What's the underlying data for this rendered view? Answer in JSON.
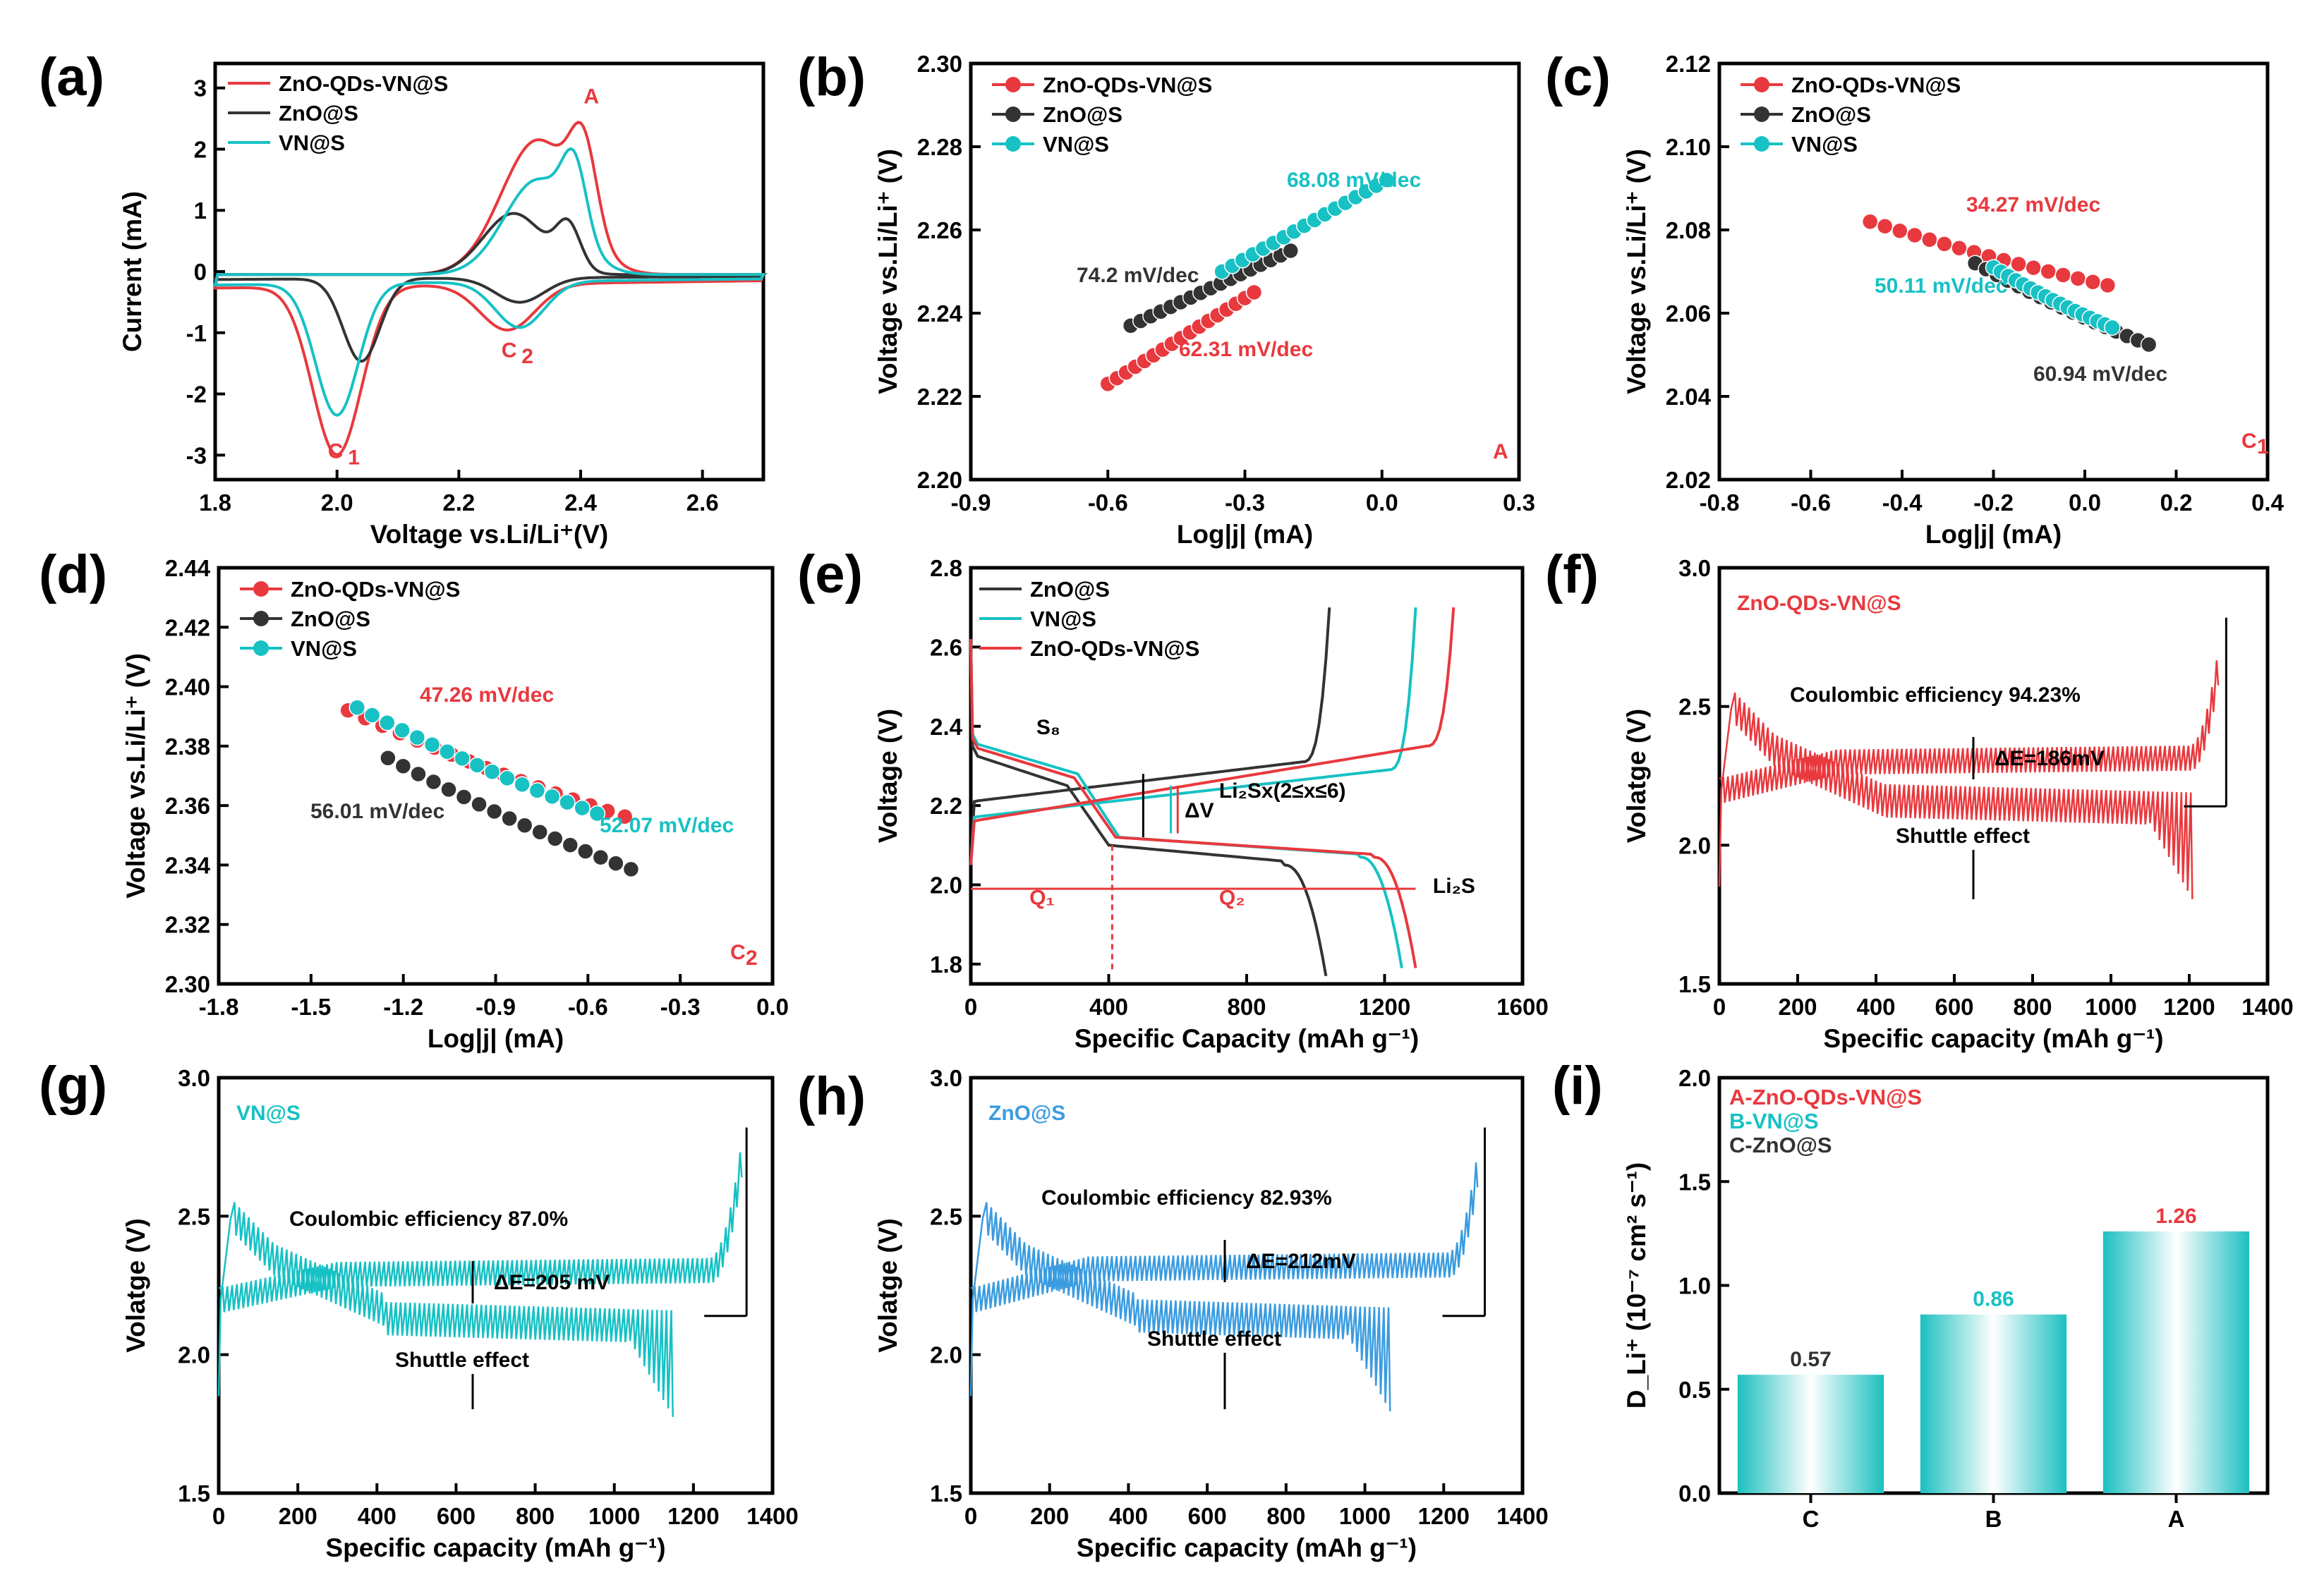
{
  "colors": {
    "red": "#e8393e",
    "black": "#333333",
    "cyan": "#17c1c4",
    "blue": "#3b9ce0",
    "teal": "#1cc0c0"
  },
  "series_names": {
    "red": "ZnO-QDs-VN@S",
    "black": "ZnO@S",
    "cyan": "VN@S"
  },
  "chart_data": [
    {
      "id": "a",
      "panel_label": "(a)",
      "type": "line",
      "xlabel": "Voltage vs.Li/Li⁺(V)",
      "ylabel": "Current (mA)",
      "xlim": [
        1.8,
        2.7
      ],
      "ylim": [
        -3.4,
        3.4
      ],
      "xticks": [
        1.8,
        2.0,
        2.2,
        2.4,
        2.6
      ],
      "xticklabels": [
        "1.8",
        "2.0",
        "2.2",
        "2.4",
        "2.6"
      ],
      "yticks": [
        -3,
        -2,
        -1,
        0,
        1,
        2,
        3
      ],
      "yticklabels": [
        "-3",
        "-2",
        "-1",
        "0",
        "1",
        "2",
        "3"
      ],
      "legend": [
        "ZnO-QDs-VN@S",
        "ZnO@S",
        "VN@S"
      ],
      "annotations": [
        "A",
        "C",
        "1",
        "C",
        "2"
      ],
      "series": [
        {
          "name": "ZnO-QDs-VN@S",
          "peaks": {
            "A": [
              2.4,
              2.7
            ],
            "C1": [
              2.0,
              -2.9
            ],
            "C2": [
              2.28,
              -0.9
            ]
          }
        },
        {
          "name": "ZnO@S",
          "peaks": {
            "A": [
              2.38,
              1.0
            ],
            "C1": [
              2.04,
              -1.4
            ],
            "C2": [
              2.3,
              -0.45
            ]
          }
        },
        {
          "name": "VN@S",
          "peaks": {
            "A": [
              2.39,
              2.0
            ],
            "C1": [
              2.0,
              -2.3
            ],
            "C2": [
              2.3,
              -0.85
            ]
          }
        }
      ]
    },
    {
      "id": "b",
      "panel_label": "(b)",
      "type": "scatter",
      "xlabel": "Log|j| (mA)",
      "ylabel": "Voltage vs.Li/Li⁺ (V)",
      "xlim": [
        -0.9,
        0.3
      ],
      "ylim": [
        2.2,
        2.3
      ],
      "xticks": [
        -0.9,
        -0.6,
        -0.3,
        0.0,
        0.3
      ],
      "xticklabels": [
        "-0.9",
        "-0.6",
        "-0.3",
        "0.0",
        "0.3"
      ],
      "yticks": [
        2.2,
        2.22,
        2.24,
        2.26,
        2.28,
        2.3
      ],
      "yticklabels": [
        "2.20",
        "2.22",
        "2.24",
        "2.26",
        "2.28",
        "2.30"
      ],
      "legend": [
        "ZnO-QDs-VN@S",
        "ZnO@S",
        "VN@S"
      ],
      "corner_label": "A",
      "series": [
        {
          "name": "ZnO-QDs-VN@S",
          "x": [
            -0.6,
            -0.28
          ],
          "y": [
            2.223,
            2.245
          ],
          "label": "62.31 mV/dec"
        },
        {
          "name": "ZnO@S",
          "x": [
            -0.55,
            -0.2
          ],
          "y": [
            2.237,
            2.255
          ],
          "label": "74.2 mV/dec"
        },
        {
          "name": "VN@S",
          "x": [
            -0.35,
            0.01
          ],
          "y": [
            2.25,
            2.272
          ],
          "label": "68.08 mV/dec"
        }
      ]
    },
    {
      "id": "c",
      "panel_label": "(c)",
      "type": "scatter",
      "xlabel": "Log|j| (mA)",
      "ylabel": "Voltage vs.Li/Li⁺ (V)",
      "xlim": [
        -0.8,
        0.4
      ],
      "ylim": [
        2.02,
        2.12
      ],
      "xticks": [
        -0.8,
        -0.6,
        -0.4,
        -0.2,
        0.0,
        0.2,
        0.4
      ],
      "xticklabels": [
        "-0.8",
        "-0.6",
        "-0.4",
        "-0.2",
        "0.0",
        "0.2",
        "0.4"
      ],
      "yticks": [
        2.02,
        2.04,
        2.06,
        2.08,
        2.1,
        2.12
      ],
      "yticklabels": [
        "2.02",
        "2.04",
        "2.06",
        "2.08",
        "2.10",
        "2.12"
      ],
      "legend": [
        "ZnO-QDs-VN@S",
        "ZnO@S",
        "VN@S"
      ],
      "corner_label": "C",
      "corner_sub": "1",
      "series": [
        {
          "name": "ZnO-QDs-VN@S",
          "x": [
            -0.47,
            0.05
          ],
          "y": [
            2.082,
            2.064
          ],
          "label": "34.27 mV/dec"
        },
        {
          "name": "ZnO@S",
          "x": [
            -0.24,
            0.14
          ],
          "y": [
            2.072,
            2.049
          ],
          "label": "60.94 mV/dec"
        },
        {
          "name": "VN@S",
          "x": [
            -0.2,
            0.06
          ],
          "y": [
            2.071,
            2.054
          ],
          "label": "50.11 mV/dec"
        }
      ]
    },
    {
      "id": "d",
      "panel_label": "(d)",
      "type": "scatter",
      "xlabel": "Log|j| (mA)",
      "ylabel": "Voltage vs.Li/Li⁺ (V)",
      "xlim": [
        -1.8,
        0.0
      ],
      "ylim": [
        2.3,
        2.44
      ],
      "xticks": [
        -1.8,
        -1.5,
        -1.2,
        -0.9,
        -0.6,
        -0.3,
        0.0
      ],
      "xticklabels": [
        "-1.8",
        "-1.5",
        "-1.2",
        "-0.9",
        "-0.6",
        "-0.3",
        "0.0"
      ],
      "yticks": [
        2.3,
        2.32,
        2.34,
        2.36,
        2.38,
        2.4,
        2.42,
        2.44
      ],
      "yticklabels": [
        "2.30",
        "2.32",
        "2.34",
        "2.36",
        "2.38",
        "2.40",
        "2.42",
        "2.44"
      ],
      "legend": [
        "ZnO-QDs-VN@S",
        "ZnO@S",
        "VN@S"
      ],
      "corner_label": "C",
      "corner_sub": "2",
      "series": [
        {
          "name": "ZnO-QDs-VN@S",
          "x": [
            -1.38,
            -0.48
          ],
          "y": [
            2.392,
            2.35
          ],
          "label": "47.26 mV/dec"
        },
        {
          "name": "ZnO@S",
          "x": [
            -1.25,
            -0.46
          ],
          "y": [
            2.376,
            2.332
          ],
          "label": "56.01 mV/dec"
        },
        {
          "name": "VN@S",
          "x": [
            -1.35,
            -0.57
          ],
          "y": [
            2.393,
            2.351
          ],
          "label": "52.07 mV/dec"
        }
      ]
    },
    {
      "id": "e",
      "panel_label": "(e)",
      "type": "line",
      "xlabel": "Specific Capacity (mAh g⁻¹)",
      "ylabel": "Voltage (V)",
      "xlim": [
        0,
        1600
      ],
      "ylim": [
        1.75,
        2.8
      ],
      "xticks": [
        0,
        400,
        800,
        1200,
        1600
      ],
      "xticklabels": [
        "0",
        "400",
        "800",
        "1200",
        "1600"
      ],
      "yticks": [
        1.8,
        2.0,
        2.2,
        2.4,
        2.6,
        2.8
      ],
      "yticklabels": [
        "1.8",
        "2.0",
        "2.2",
        "2.4",
        "2.6",
        "2.8"
      ],
      "legend": [
        "ZnO@S",
        "VN@S",
        "ZnO-QDs-VN@S"
      ],
      "annotations": [
        "S₈",
        "ΔV",
        "Li₂Sx(2≤x≤6)",
        "Li₂S",
        "Q₁",
        "Q₂"
      ],
      "series": [
        {
          "name": "ZnO@S",
          "discharge_end": 1030,
          "charge_end": 1040
        },
        {
          "name": "VN@S",
          "discharge_end": 1250,
          "charge_end": 1290
        },
        {
          "name": "ZnO-QDs-VN@S",
          "discharge_end": 1290,
          "charge_end": 1400
        }
      ]
    },
    {
      "id": "f",
      "panel_label": "(f)",
      "type": "line",
      "xlabel": "Specific capacity (mAh g⁻¹)",
      "ylabel": "Volatge (V)",
      "xlim": [
        0,
        1400
      ],
      "ylim": [
        1.5,
        3.0
      ],
      "xticks": [
        0,
        200,
        400,
        600,
        800,
        1000,
        1200,
        1400
      ],
      "xticklabels": [
        "0",
        "200",
        "400",
        "600",
        "800",
        "1000",
        "1200",
        "1400"
      ],
      "yticks": [
        1.5,
        2.0,
        2.5,
        3.0
      ],
      "yticklabels": [
        "1.5",
        "2.0",
        "2.5",
        "3.0"
      ],
      "sample": "ZnO-QDs-VN@S",
      "ce_text": "Coulombic efficiency 94.23%",
      "de_text": "ΔE=186mV",
      "shuttle_text": "Shuttle effect",
      "discharge_end": 1210,
      "charge_end": 1280,
      "charge_plateau": 2.3,
      "discharge_plateau": 2.12
    },
    {
      "id": "g",
      "panel_label": "(g)",
      "type": "line",
      "xlabel": "Specific capacity (mAh g⁻¹)",
      "ylabel": "Volatge (V)",
      "xlim": [
        0,
        1400
      ],
      "ylim": [
        1.5,
        3.0
      ],
      "xticks": [
        0,
        200,
        400,
        600,
        800,
        1000,
        1200,
        1400
      ],
      "xticklabels": [
        "0",
        "200",
        "400",
        "600",
        "800",
        "1000",
        "1200",
        "1400"
      ],
      "yticks": [
        1.5,
        2.0,
        2.5,
        3.0
      ],
      "yticklabels": [
        "1.5",
        "2.0",
        "2.5",
        "3.0"
      ],
      "sample": "VN@S",
      "ce_text": "Coulombic efficiency 87.0%",
      "de_text": "ΔE=205 mV",
      "shuttle_text": "Shuttle effect",
      "discharge_end": 1150,
      "charge_end": 1320,
      "charge_plateau": 2.29,
      "discharge_plateau": 2.09
    },
    {
      "id": "h",
      "panel_label": "(h)",
      "type": "line",
      "xlabel": "Specific capacity (mAh g⁻¹)",
      "ylabel": "Volatge (V)",
      "xlim": [
        0,
        1400
      ],
      "ylim": [
        1.5,
        3.0
      ],
      "xticks": [
        0,
        200,
        400,
        600,
        800,
        1000,
        1200,
        1400
      ],
      "xticklabels": [
        "0",
        "200",
        "400",
        "600",
        "800",
        "1000",
        "1200",
        "1400"
      ],
      "yticks": [
        1.5,
        2.0,
        2.5,
        3.0
      ],
      "yticklabels": [
        "1.5",
        "2.0",
        "2.5",
        "3.0"
      ],
      "sample": "ZnO@S",
      "ce_text": "Coulombic efficiency 82.93%",
      "de_text": "ΔE=212mV",
      "shuttle_text": "Shuttle effect",
      "discharge_end": 1070,
      "charge_end": 1290,
      "charge_plateau": 2.31,
      "discharge_plateau": 2.1
    },
    {
      "id": "i",
      "panel_label": "(i)",
      "type": "bar",
      "ylabel": "D_Li⁺ (10⁻⁷ cm² s⁻¹)",
      "ylim": [
        0,
        2.0
      ],
      "yticks": [
        0.0,
        0.5,
        1.0,
        1.5,
        2.0
      ],
      "yticklabels": [
        "0.0",
        "0.5",
        "1.0",
        "1.5",
        "2.0"
      ],
      "categories": [
        "C",
        "B",
        "A"
      ],
      "values": [
        0.57,
        0.86,
        1.26
      ],
      "value_labels": [
        "0.57",
        "0.86",
        "1.26"
      ],
      "legend": [
        "A-ZnO-QDs-VN@S",
        "B-VN@S",
        "C-ZnO@S"
      ]
    }
  ]
}
